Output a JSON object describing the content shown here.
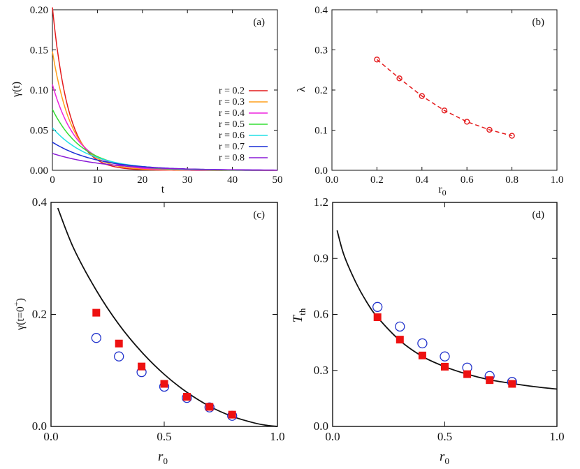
{
  "chart_data": [
    {
      "id": "a",
      "type": "line",
      "panel_label": "(a)",
      "xlabel": "t",
      "ylabel": "γ(t)",
      "xlim": [
        0,
        50
      ],
      "ylim": [
        0,
        0.2
      ],
      "xticks": [
        0,
        10,
        20,
        30,
        40,
        50
      ],
      "xtick_labels": [
        "0",
        "10",
        "20",
        "30",
        "40",
        "50"
      ],
      "yticks": [
        0,
        0.05,
        0.1,
        0.15,
        0.2
      ],
      "ytick_labels": [
        "0.00",
        "0.05",
        "0.10",
        "0.15",
        "0.20"
      ],
      "legend_position": "right",
      "series": [
        {
          "name": "r = 0.2",
          "color": "#e41a1c",
          "gamma0": 0.203,
          "lambda": 0.276
        },
        {
          "name": "r = 0.3",
          "color": "#ff9f1a",
          "gamma0": 0.148,
          "lambda": 0.229
        },
        {
          "name": "r = 0.4",
          "color": "#ee22dd",
          "gamma0": 0.107,
          "lambda": 0.185
        },
        {
          "name": "r = 0.5",
          "color": "#33dd33",
          "gamma0": 0.076,
          "lambda": 0.149
        },
        {
          "name": "r = 0.6",
          "color": "#22e0e6",
          "gamma0": 0.053,
          "lambda": 0.121
        },
        {
          "name": "r = 0.7",
          "color": "#1a2fd6",
          "gamma0": 0.035,
          "lambda": 0.101
        },
        {
          "name": "r = 0.8",
          "color": "#8a1ad6",
          "gamma0": 0.021,
          "lambda": 0.086
        }
      ]
    },
    {
      "id": "b",
      "type": "scatter",
      "panel_label": "(b)",
      "xlabel": "r0",
      "ylabel": "λ",
      "xlim": [
        0,
        1
      ],
      "ylim": [
        0,
        0.4
      ],
      "xticks": [
        0,
        0.2,
        0.4,
        0.6,
        0.8,
        1.0
      ],
      "xtick_labels": [
        "0.0",
        "0.2",
        "0.4",
        "0.6",
        "0.8",
        "1.0"
      ],
      "yticks": [
        0,
        0.1,
        0.2,
        0.3,
        0.4
      ],
      "ytick_labels": [
        "0.0",
        "0.1",
        "0.2",
        "0.3",
        "0.4"
      ],
      "color": "#e41a1c",
      "x": [
        0.2,
        0.3,
        0.4,
        0.5,
        0.6,
        0.7,
        0.8
      ],
      "y": [
        0.276,
        0.229,
        0.185,
        0.149,
        0.121,
        0.101,
        0.086
      ]
    },
    {
      "id": "c",
      "type": "scatter",
      "panel_label": "(c)",
      "xlabel": "r0",
      "ylabel": "γ(t=0+)",
      "xlim": [
        0,
        1
      ],
      "ylim": [
        0,
        0.4
      ],
      "xticks": [
        0,
        0.5,
        1.0
      ],
      "xtick_labels": [
        "0.0",
        "0.5",
        "1.0"
      ],
      "yticks": [
        0,
        0.2,
        0.4
      ],
      "ytick_labels": [
        "0.0",
        "0.2",
        "0.4"
      ],
      "series": [
        {
          "name": "squares",
          "marker": "filled-square",
          "color": "#ee1111",
          "x": [
            0.2,
            0.3,
            0.4,
            0.5,
            0.6,
            0.7,
            0.8
          ],
          "y": [
            0.203,
            0.148,
            0.107,
            0.076,
            0.053,
            0.035,
            0.021
          ]
        },
        {
          "name": "circles",
          "marker": "open-circle",
          "color": "#2233cc",
          "x": [
            0.2,
            0.3,
            0.4,
            0.5,
            0.6,
            0.7,
            0.8
          ],
          "y": [
            0.158,
            0.125,
            0.097,
            0.071,
            0.051,
            0.034,
            0.019
          ]
        }
      ],
      "curve": {
        "x": [
          0.03,
          0.1,
          0.2,
          0.3,
          0.4,
          0.5,
          0.6,
          0.7,
          0.8,
          0.9,
          0.96,
          1.0
        ],
        "y": [
          0.39,
          0.318,
          0.243,
          0.182,
          0.133,
          0.093,
          0.061,
          0.036,
          0.018,
          0.006,
          0.0015,
          0.0
        ]
      }
    },
    {
      "id": "d",
      "type": "scatter",
      "panel_label": "(d)",
      "xlabel": "r0",
      "ylabel": "Tth",
      "xlim": [
        0,
        1
      ],
      "ylim": [
        0,
        1.2
      ],
      "xticks": [
        0,
        0.5,
        1.0
      ],
      "xtick_labels": [
        "0.0",
        "0.5",
        "1.0"
      ],
      "yticks": [
        0,
        0.3,
        0.6,
        0.9,
        1.2
      ],
      "ytick_labels": [
        "0.0",
        "0.3",
        "0.6",
        "0.9",
        "1.2"
      ],
      "series": [
        {
          "name": "squares",
          "marker": "filled-square",
          "color": "#ee1111",
          "x": [
            0.2,
            0.3,
            0.4,
            0.5,
            0.6,
            0.7,
            0.8
          ],
          "y": [
            0.585,
            0.465,
            0.38,
            0.32,
            0.28,
            0.248,
            0.228
          ]
        },
        {
          "name": "circles",
          "marker": "open-circle",
          "color": "#2233cc",
          "x": [
            0.2,
            0.3,
            0.4,
            0.5,
            0.6,
            0.7,
            0.8
          ],
          "y": [
            0.64,
            0.535,
            0.445,
            0.375,
            0.315,
            0.27,
            0.238
          ]
        }
      ],
      "curve": {
        "x": [
          0.02,
          0.05,
          0.1,
          0.15,
          0.2,
          0.3,
          0.4,
          0.5,
          0.6,
          0.7,
          0.8,
          0.9,
          1.0
        ],
        "y": [
          1.05,
          0.92,
          0.78,
          0.67,
          0.585,
          0.46,
          0.375,
          0.32,
          0.28,
          0.25,
          0.23,
          0.213,
          0.2
        ]
      }
    }
  ]
}
